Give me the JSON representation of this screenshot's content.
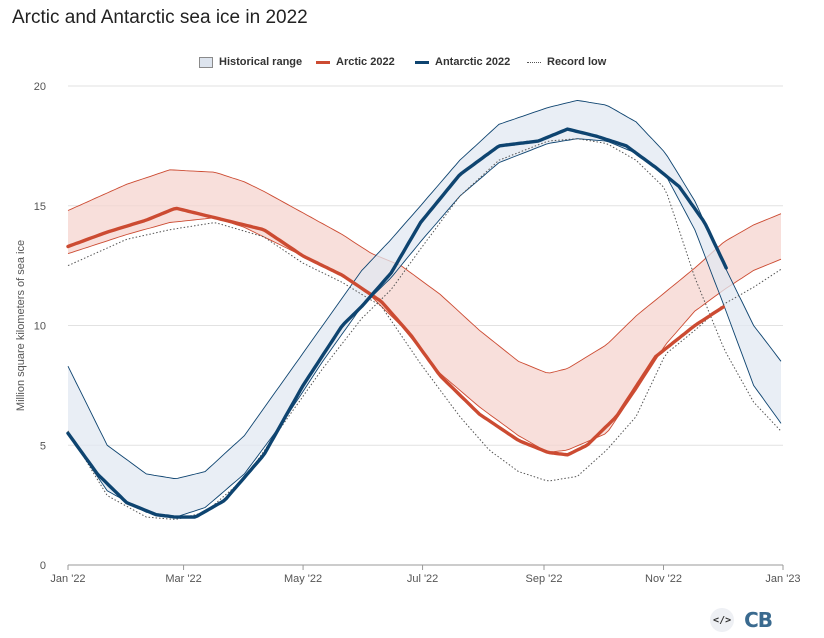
{
  "header": {
    "title": "Arctic and Antarctic sea ice in 2022"
  },
  "legend": {
    "historical": "Historical range",
    "arctic": "Arctic 2022",
    "antarctic": "Antarctic 2022",
    "record": "Record low"
  },
  "colors": {
    "arctic": "#cc4b32",
    "arctic_band": "#f5d4cf",
    "antarctic": "#0e4470",
    "antarctic_band": "#e2e8f1",
    "record": "#555555",
    "grid": "#e2e2e2"
  },
  "footer": {
    "embed_label": "</>",
    "logo_text": "CB"
  },
  "chart_data": {
    "type": "line",
    "title": "Arctic and Antarctic sea ice in 2022",
    "ylabel": "Million square kilometers of sea ice",
    "xlabel": "",
    "xlim": [
      0,
      365
    ],
    "ylim": [
      0,
      20
    ],
    "yticks": [
      0,
      5,
      10,
      15,
      20
    ],
    "xticks": [
      {
        "day": 0,
        "label": "Jan '22"
      },
      {
        "day": 59,
        "label": "Mar '22"
      },
      {
        "day": 120,
        "label": "May '22"
      },
      {
        "day": 181,
        "label": "Jul '22"
      },
      {
        "day": 243,
        "label": "Sep '22"
      },
      {
        "day": 304,
        "label": "Nov '22"
      },
      {
        "day": 365,
        "label": "Jan '23"
      }
    ],
    "series": [
      {
        "name": "Historical range (Arctic)",
        "kind": "band",
        "x": [
          0,
          30,
          52,
          75,
          90,
          100,
          120,
          140,
          155,
          170,
          190,
          210,
          230,
          245,
          255,
          275,
          290,
          305,
          320,
          335,
          350,
          365
        ],
        "low": [
          13.0,
          13.8,
          14.3,
          14.5,
          14.1,
          13.7,
          12.9,
          12.1,
          11.2,
          10.0,
          8.0,
          6.6,
          5.4,
          4.7,
          4.8,
          5.5,
          7.3,
          9.2,
          10.6,
          11.5,
          12.3,
          12.8
        ],
        "high": [
          14.8,
          15.9,
          16.5,
          16.4,
          16.0,
          15.6,
          14.7,
          13.8,
          13.0,
          12.5,
          11.3,
          9.8,
          8.5,
          8.0,
          8.2,
          9.2,
          10.4,
          11.4,
          12.4,
          13.5,
          14.2,
          14.7
        ]
      },
      {
        "name": "Historical range (Antarctic)",
        "kind": "band",
        "x": [
          0,
          20,
          40,
          55,
          70,
          90,
          110,
          130,
          150,
          165,
          180,
          200,
          220,
          245,
          260,
          275,
          290,
          305,
          320,
          335,
          350,
          365
        ],
        "low": [
          5.5,
          3.1,
          2.2,
          2.0,
          2.4,
          3.8,
          6.0,
          8.5,
          10.8,
          12.0,
          13.5,
          15.4,
          16.8,
          17.6,
          17.8,
          17.7,
          17.2,
          16.3,
          14.0,
          10.8,
          7.5,
          5.8
        ],
        "high": [
          8.3,
          5.0,
          3.8,
          3.6,
          3.9,
          5.4,
          7.7,
          10.0,
          12.3,
          13.6,
          15.0,
          16.9,
          18.4,
          19.1,
          19.4,
          19.2,
          18.5,
          17.2,
          15.2,
          12.5,
          10.0,
          8.4
        ]
      },
      {
        "name": "Record low (Arctic)",
        "kind": "dotted",
        "x": [
          0,
          30,
          52,
          75,
          100,
          120,
          140,
          160,
          180,
          200,
          215,
          230,
          245,
          260,
          275,
          290,
          305,
          320,
          335,
          350,
          365
        ],
        "y": [
          12.5,
          13.6,
          14.0,
          14.3,
          13.7,
          12.6,
          11.8,
          10.8,
          8.4,
          6.2,
          4.8,
          3.9,
          3.5,
          3.7,
          4.8,
          6.2,
          8.8,
          9.8,
          10.9,
          11.6,
          12.4
        ]
      },
      {
        "name": "Record low (Antarctic)",
        "kind": "dotted",
        "x": [
          0,
          20,
          40,
          55,
          70,
          90,
          110,
          130,
          150,
          165,
          180,
          200,
          220,
          245,
          260,
          275,
          290,
          305,
          320,
          335,
          350,
          365
        ],
        "y": [
          5.6,
          2.9,
          2.0,
          1.9,
          2.2,
          3.6,
          5.9,
          8.2,
          10.3,
          11.5,
          13.2,
          15.4,
          16.9,
          17.7,
          17.8,
          17.6,
          16.9,
          15.7,
          12.0,
          9.0,
          6.8,
          5.5
        ]
      },
      {
        "name": "Arctic 2022",
        "kind": "line",
        "x": [
          0,
          20,
          40,
          55,
          65,
          80,
          100,
          120,
          140,
          160,
          175,
          190,
          210,
          230,
          245,
          255,
          265,
          280,
          300,
          320,
          335
        ],
        "y": [
          13.3,
          13.9,
          14.4,
          14.9,
          14.7,
          14.4,
          14.0,
          12.9,
          12.1,
          11.0,
          9.6,
          7.9,
          6.3,
          5.2,
          4.7,
          4.6,
          5.0,
          6.2,
          8.7,
          10.0,
          10.8
        ]
      },
      {
        "name": "Antarctic 2022",
        "kind": "line",
        "x": [
          0,
          15,
          30,
          45,
          55,
          65,
          80,
          100,
          120,
          140,
          150,
          165,
          180,
          200,
          220,
          240,
          255,
          270,
          285,
          300,
          312,
          325,
          336
        ],
        "y": [
          5.5,
          3.8,
          2.6,
          2.1,
          2.0,
          2.0,
          2.7,
          4.6,
          7.5,
          10.0,
          10.8,
          12.2,
          14.3,
          16.3,
          17.5,
          17.7,
          18.2,
          17.9,
          17.5,
          16.6,
          15.8,
          14.3,
          12.4
        ]
      }
    ]
  }
}
